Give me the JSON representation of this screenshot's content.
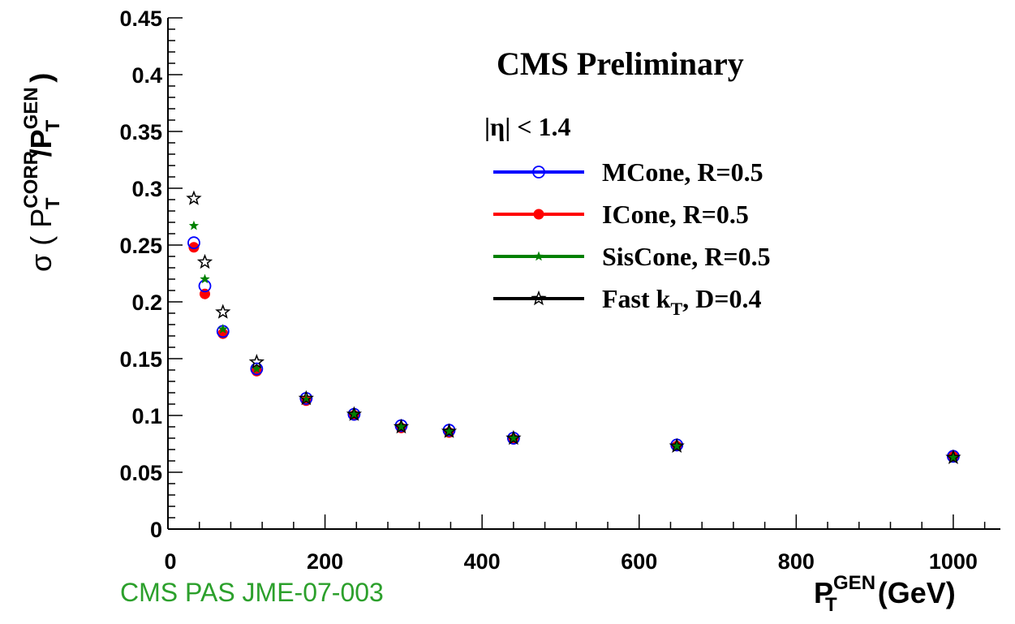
{
  "chart_data": {
    "type": "scatter",
    "title": "CMS Preliminary",
    "selection": "|η| < 1.4",
    "xlabel": {
      "base": "P",
      "sup": "GEN",
      "sub": "T",
      "unit": " (GeV)"
    },
    "ylabel": {
      "sigma": "σ ( P",
      "sup1": "CORR",
      "sub1": "T",
      "mid": "/P",
      "sup2": "GEN",
      "sub2": "T",
      "close": " )"
    },
    "xlim": [
      0,
      1060
    ],
    "ylim": [
      0,
      0.45
    ],
    "xticks": [
      "0",
      "200",
      "400",
      "600",
      "800",
      "1000"
    ],
    "yticks": [
      "0",
      "0.05",
      "0.1",
      "0.15",
      "0.2",
      "0.25",
      "0.3",
      "0.35",
      "0.4",
      "0.45"
    ],
    "grid": false,
    "legend_position": "top-right",
    "series": [
      {
        "name": "MCone, R=0.5",
        "color": "#0000ff",
        "marker": "open-circle",
        "x": [
          33,
          47,
          70,
          113,
          176,
          237,
          297,
          358,
          440,
          648,
          1000
        ],
        "y": [
          0.252,
          0.214,
          0.174,
          0.141,
          0.115,
          0.101,
          0.091,
          0.087,
          0.08,
          0.074,
          0.064
        ]
      },
      {
        "name": "ICone, R=0.5",
        "color": "#ff0000",
        "marker": "filled-circle",
        "x": [
          33,
          47,
          70,
          113,
          176,
          237,
          297,
          358,
          440,
          648,
          1000
        ],
        "y": [
          0.248,
          0.207,
          0.172,
          0.139,
          0.113,
          0.1,
          0.089,
          0.085,
          0.079,
          0.073,
          0.064
        ]
      },
      {
        "name": "SisCone, R=0.5",
        "color": "#008000",
        "marker": "filled-star",
        "x": [
          33,
          47,
          70,
          113,
          176,
          237,
          297,
          358,
          440,
          648,
          1000
        ],
        "y": [
          0.267,
          0.22,
          0.176,
          0.141,
          0.114,
          0.101,
          0.09,
          0.086,
          0.08,
          0.073,
          0.063
        ]
      },
      {
        "name": "Fast kT, D=0.4",
        "label_main": "Fast k",
        "label_sub": "T",
        "label_tail": ", D=0.4",
        "color": "#000000",
        "marker": "open-star",
        "x": [
          33,
          47,
          70,
          113,
          176,
          237,
          297,
          358,
          440,
          648,
          1000
        ],
        "y": [
          0.291,
          0.235,
          0.191,
          0.147,
          0.115,
          0.101,
          0.09,
          0.086,
          0.08,
          0.073,
          0.063
        ]
      }
    ]
  },
  "footer_note": "CMS PAS JME-07-003"
}
